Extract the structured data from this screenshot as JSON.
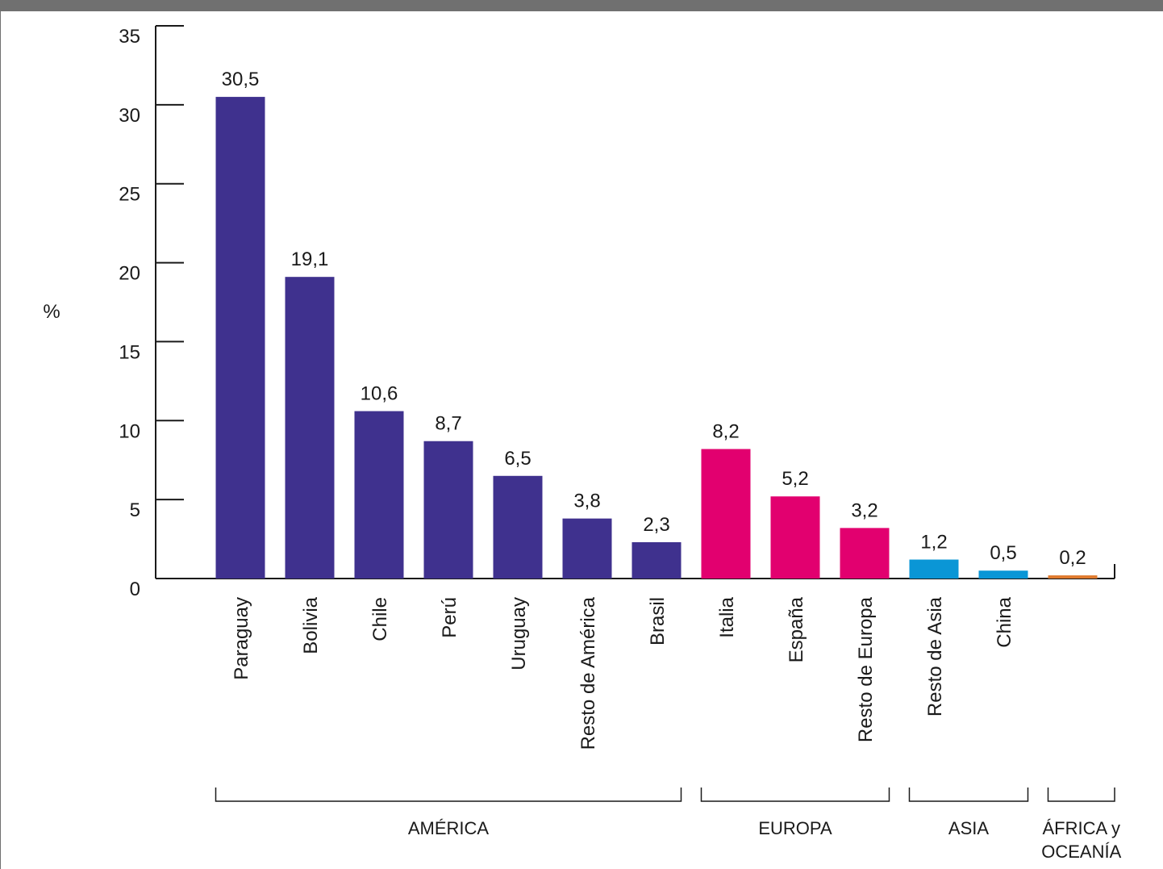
{
  "chart_data": {
    "type": "bar",
    "title": "",
    "xlabel": "",
    "ylabel": "%",
    "ylim": [
      0,
      35
    ],
    "yticks": [
      "0",
      "5",
      "10",
      "15",
      "20",
      "25",
      "30",
      "35"
    ],
    "categories": [
      "Paraguay",
      "Bolivia",
      "Chile",
      "Perú",
      "Uruguay",
      "Resto de América",
      "Brasil",
      "Italia",
      "España",
      "Resto de Europa",
      "Resto de Asia",
      "China",
      ""
    ],
    "values": [
      30.5,
      19.1,
      10.6,
      8.7,
      6.5,
      3.8,
      2.3,
      8.2,
      5.2,
      3.2,
      1.2,
      0.5,
      0.2
    ],
    "value_labels": [
      "30,5",
      "19,1",
      "10,6",
      "8,7",
      "6,5",
      "3,8",
      "2,3",
      "8,2",
      "5,2",
      "3,2",
      "1,2",
      "0,5",
      "0,2"
    ],
    "group_index": [
      0,
      0,
      0,
      0,
      0,
      0,
      0,
      1,
      1,
      1,
      2,
      2,
      3
    ],
    "groups": [
      {
        "label_lines": [
          "AMÉRICA"
        ],
        "color": "#3F318E"
      },
      {
        "label_lines": [
          "EUROPA"
        ],
        "color": "#E2006F"
      },
      {
        "label_lines": [
          "ASIA"
        ],
        "color": "#0A96D6"
      },
      {
        "label_lines": [
          "ÁFRICA y",
          "OCEANÍA"
        ],
        "color": "#E07B2E"
      }
    ],
    "grid": false,
    "legend": "none"
  }
}
